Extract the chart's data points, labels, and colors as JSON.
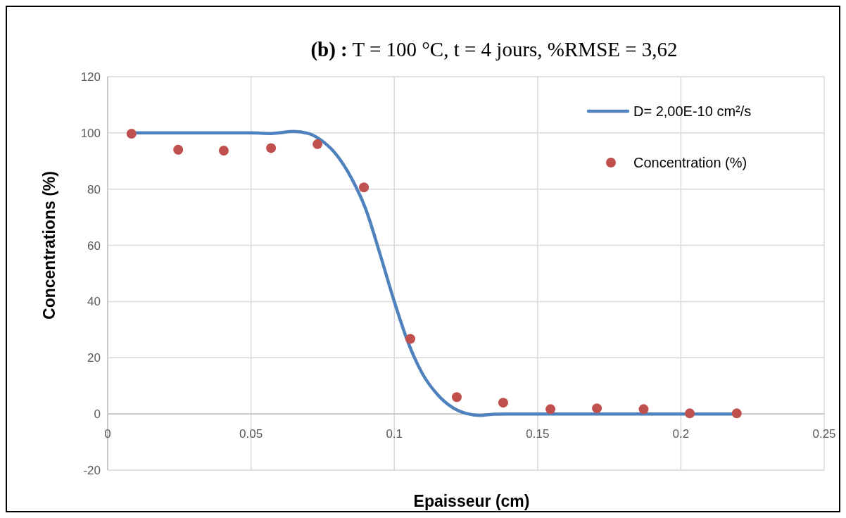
{
  "chart_data": {
    "type": "scatter",
    "title": "(b) : T = 100 °C, t = 4 jours, %RMSE = 3,62",
    "xlabel": "Epaisseur (cm)",
    "ylabel": "Concentrations (%)",
    "xlim": [
      0,
      0.25
    ],
    "xticks": [
      0,
      0.05,
      0.1,
      0.15,
      0.2,
      0.25
    ],
    "ylim": [
      -20,
      120
    ],
    "yticks": [
      -20,
      0,
      20,
      40,
      60,
      80,
      100,
      120
    ],
    "grid": true,
    "legend": "top right",
    "series": [
      {
        "name": "D= 2,00E-10 cm²/s",
        "type": "line",
        "color": "#4f81bd",
        "marker": "none",
        "line_style": "solid",
        "x": [
          0.0083,
          0.03,
          0.05,
          0.057,
          0.065,
          0.07,
          0.075,
          0.08,
          0.085,
          0.09,
          0.095,
          0.1,
          0.105,
          0.11,
          0.115,
          0.12,
          0.125,
          0.13,
          0.135,
          0.14,
          0.15,
          0.2195
        ],
        "values": [
          100,
          100,
          100,
          99.8,
          100.5,
          99.8,
          97,
          92,
          84,
          73,
          57,
          40,
          25,
          14,
          7,
          2.5,
          0.2,
          -0.5,
          -0.1,
          0,
          0,
          0
        ]
      },
      {
        "name": "Concentration (%)",
        "color": "#c0504d",
        "marker": "circle",
        "x": [
          0.0083,
          0.0246,
          0.0405,
          0.057,
          0.0732,
          0.0894,
          0.1056,
          0.1218,
          0.138,
          0.1545,
          0.1707,
          0.187,
          0.2031,
          0.2195
        ],
        "values": [
          99.7,
          94,
          93.7,
          94.6,
          96,
          80.6,
          26.7,
          6,
          4,
          1.7,
          2,
          1.7,
          0.2,
          0.2
        ]
      }
    ]
  }
}
